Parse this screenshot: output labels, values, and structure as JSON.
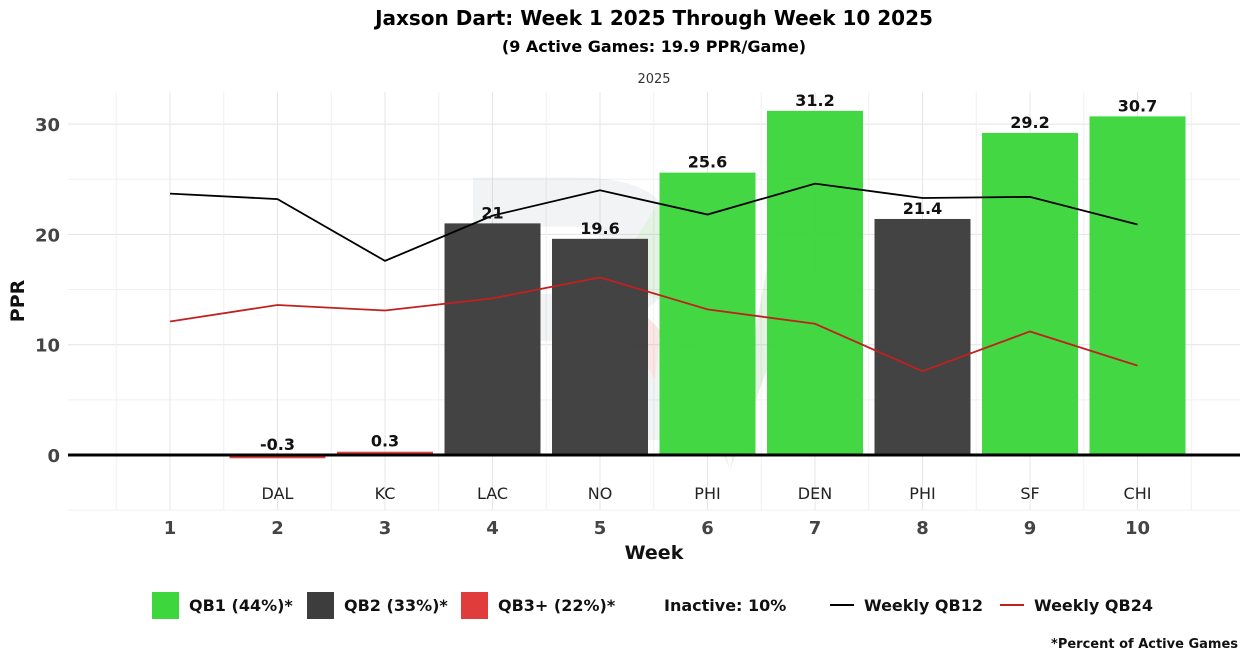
{
  "chart_data": {
    "type": "bar",
    "title": "Jaxson Dart: Week 1 2025 Through Week 10 2025",
    "subtitle": "(9 Active Games: 19.9 PPR/Game)",
    "facet_label": "2025",
    "xlabel": "Week",
    "ylabel": "PPR",
    "ylim": [
      -5,
      33
    ],
    "yticks": [
      0,
      10,
      20,
      30
    ],
    "weeks": [
      1,
      2,
      3,
      4,
      5,
      6,
      7,
      8,
      9,
      10
    ],
    "opponents": [
      "",
      "DAL",
      "KC",
      "LAC",
      "NO",
      "PHI",
      "DEN",
      "PHI",
      "SF",
      "CHI"
    ],
    "values": [
      null,
      -0.3,
      0.3,
      21,
      19.6,
      25.6,
      31.2,
      21.4,
      29.2,
      30.7
    ],
    "value_labels": [
      "",
      "-0.3",
      "0.3",
      "21",
      "19.6",
      "25.6",
      "31.2",
      "21.4",
      "29.2",
      "30.7"
    ],
    "tiers": [
      "",
      "QB3+",
      "QB3+",
      "QB2",
      "QB2",
      "QB1",
      "QB1",
      "QB2",
      "QB1",
      "QB1"
    ],
    "tier_colors": {
      "QB1": "#3dd63d",
      "QB2": "#3d3d3d",
      "QB3+": "#e03c3c"
    },
    "series": [
      {
        "name": "Weekly QB12",
        "color": "#000000",
        "values": [
          23.7,
          23.2,
          17.6,
          21.7,
          24.0,
          21.8,
          24.6,
          23.3,
          23.4,
          20.9
        ]
      },
      {
        "name": "Weekly QB24",
        "color": "#c0211f",
        "values": [
          12.1,
          13.6,
          13.1,
          14.2,
          16.1,
          13.2,
          11.9,
          7.6,
          11.2,
          8.1
        ]
      }
    ],
    "legend": {
      "items": [
        {
          "label": "QB1 (44%)*",
          "color": "#3dd63d",
          "kind": "box"
        },
        {
          "label": "QB2 (33%)*",
          "color": "#3d3d3d",
          "kind": "box"
        },
        {
          "label": "QB3+ (22%)*",
          "color": "#e03c3c",
          "kind": "box"
        },
        {
          "label": "Inactive: 10%",
          "color": "",
          "kind": "text"
        },
        {
          "label": "Weekly QB12",
          "color": "#000000",
          "kind": "line"
        },
        {
          "label": "Weekly QB24",
          "color": "#c0211f",
          "kind": "line"
        }
      ],
      "footnote": "*Percent of Active Games"
    }
  }
}
